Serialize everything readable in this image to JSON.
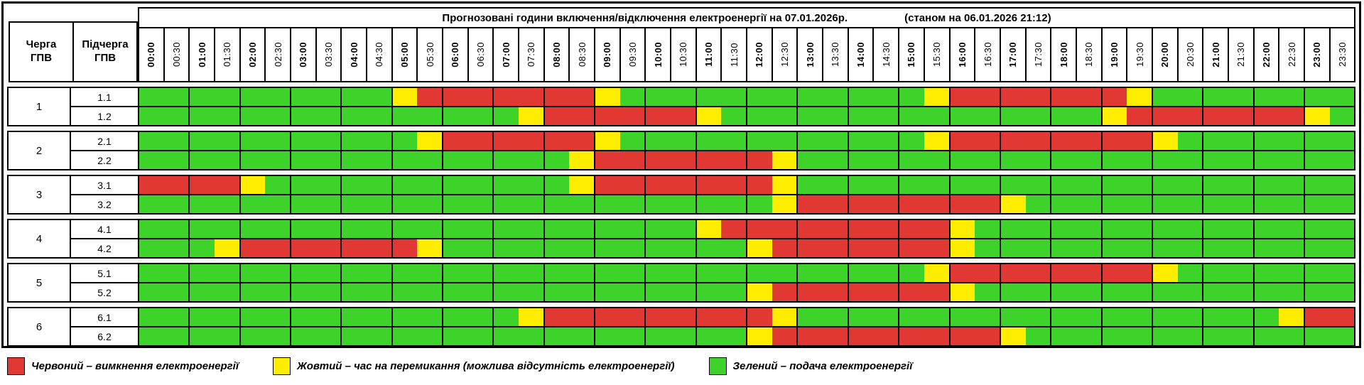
{
  "title": {
    "main": "Прогнозовані години включення/відключення електроенергії на 07.01.2026р.",
    "status": "(станом на 06.01.2026 21:12)"
  },
  "corner": {
    "queue": "Черга\nГПВ",
    "subqueue": "Підчерга\nГПВ"
  },
  "chart_data": {
    "type": "heatmap",
    "x_ticks": [
      "00:00",
      "00:30",
      "01:00",
      "01:30",
      "02:00",
      "02:30",
      "03:00",
      "03:30",
      "04:00",
      "04:30",
      "05:00",
      "05:30",
      "06:00",
      "06:30",
      "07:00",
      "07:30",
      "08:00",
      "08:30",
      "09:00",
      "09:30",
      "10:00",
      "10:30",
      "11:00",
      "11:30",
      "12:00",
      "12:30",
      "13:00",
      "13:30",
      "14:00",
      "14:30",
      "15:00",
      "15:30",
      "16:00",
      "16:30",
      "17:00",
      "17:30",
      "18:00",
      "18:30",
      "19:00",
      "19:30",
      "20:00",
      "20:30",
      "21:00",
      "21:30",
      "22:00",
      "22:30",
      "23:00",
      "23:30"
    ],
    "status_colors": {
      "G": "#3ed32b",
      "Y": "#ffed00",
      "R": "#e23834"
    },
    "groups": [
      {
        "queue": "1",
        "rows": [
          {
            "label": "1.1",
            "slots": "GGGGGGGGGGYRRRRRRRYGGGGGGGGGGGGYRRRRRRRYGGGGGGGG"
          },
          {
            "label": "1.2",
            "slots": "GGGGGGGGGGGGGGGYRRRRRRYGGGGGGGGGGGGGGGYRRRRRRRYG"
          }
        ]
      },
      {
        "queue": "2",
        "rows": [
          {
            "label": "2.1",
            "slots": "GGGGGGGGGGGYRRRRRRYGGGGGGGGGGGGYRRRRRRRRYGGGGGGG"
          },
          {
            "label": "2.2",
            "slots": "GGGGGGGGGGGGGGGGGYRRRRRRRYGGGGGGGGGGGGGGGGGGGGGG"
          }
        ]
      },
      {
        "queue": "3",
        "rows": [
          {
            "label": "3.1",
            "slots": "RRRRYGGGGGGGGGGGGYRRRRRRRYGGGGGGGGGGGGGGGGGGGGGG"
          },
          {
            "label": "3.2",
            "slots": "GGGGGGGGGGGGGGGGGGGGGGGGGYRRRRRRRRYGGGGGGGGGGGGG"
          }
        ]
      },
      {
        "queue": "4",
        "rows": [
          {
            "label": "4.1",
            "slots": "GGGGGGGGGGGGGGGGGGGGGGYRRRRRRRRRYGGGGGGGGGGGGGGG"
          },
          {
            "label": "4.2",
            "slots": "GGGYRRRRRRRYGGGGGGGGGGGGYRRRRRRRYGGGGGGGGGGGGGGG"
          }
        ]
      },
      {
        "queue": "5",
        "rows": [
          {
            "label": "5.1",
            "slots": "GGGGGGGGGGGGGGGGGGGGGGGGGGGGGGGYRRRRRRRRYGGGGGGG"
          },
          {
            "label": "5.2",
            "slots": "GGGGGGGGGGGGGGGGGGGGGGGGYRRRRRRRYGGGGGGGGGGGGGGG"
          }
        ]
      },
      {
        "queue": "6",
        "rows": [
          {
            "label": "6.1",
            "slots": "GGGGGGGGGGGGGGGYRRRRRRRRRYGGGGGGGGGGGGGGGGGGGYRR"
          },
          {
            "label": "6.2",
            "slots": "GGGGGGGGGGGGGGGGGGGGGGGGYRRRRRRRRRYGGGGGGGGGGGGG"
          }
        ]
      }
    ]
  },
  "legend": [
    {
      "status": "R",
      "label": "Червоний – вимкнення електроенергії"
    },
    {
      "status": "Y",
      "label": "Жовтий – час на перемикання (можлива відсутність електроенергії)"
    },
    {
      "status": "G",
      "label": "Зелений – подача електроенергії"
    }
  ]
}
